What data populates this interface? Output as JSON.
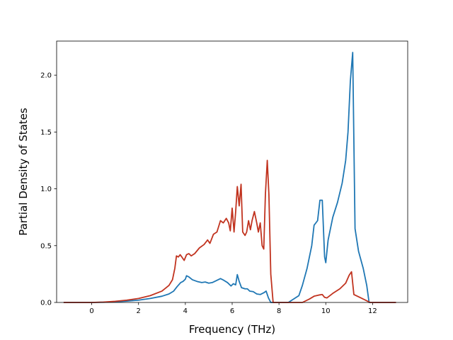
{
  "chart_data": {
    "type": "line",
    "title": "",
    "xlabel": "Frequency (THz)",
    "ylabel": "Partial Density of States",
    "xlim": [
      -1.5,
      13.5
    ],
    "ylim": [
      0.0,
      2.3
    ],
    "xticks": [
      0,
      2,
      4,
      6,
      8,
      10,
      12
    ],
    "xtick_labels": [
      "0",
      "2",
      "4",
      "6",
      "8",
      "10",
      "12"
    ],
    "yticks": [
      0.0,
      0.5,
      1.0,
      1.5,
      2.0
    ],
    "ytick_labels": [
      "0.0",
      "0.5",
      "1.0",
      "1.5",
      "2.0"
    ],
    "grid": false,
    "legend": "none",
    "series": [
      {
        "color": "#1f77b4",
        "points": [
          [
            -1.2,
            0.0
          ],
          [
            0.0,
            0.0
          ],
          [
            0.5,
            0.002
          ],
          [
            1.0,
            0.006
          ],
          [
            1.5,
            0.012
          ],
          [
            2.0,
            0.02
          ],
          [
            2.5,
            0.035
          ],
          [
            3.0,
            0.055
          ],
          [
            3.3,
            0.075
          ],
          [
            3.5,
            0.1
          ],
          [
            3.65,
            0.14
          ],
          [
            3.8,
            0.175
          ],
          [
            3.9,
            0.185
          ],
          [
            4.0,
            0.205
          ],
          [
            4.05,
            0.235
          ],
          [
            4.15,
            0.225
          ],
          [
            4.3,
            0.2
          ],
          [
            4.5,
            0.185
          ],
          [
            4.7,
            0.175
          ],
          [
            4.85,
            0.18
          ],
          [
            5.0,
            0.17
          ],
          [
            5.15,
            0.175
          ],
          [
            5.3,
            0.19
          ],
          [
            5.5,
            0.21
          ],
          [
            5.6,
            0.2
          ],
          [
            5.8,
            0.175
          ],
          [
            5.95,
            0.145
          ],
          [
            6.05,
            0.165
          ],
          [
            6.15,
            0.155
          ],
          [
            6.22,
            0.245
          ],
          [
            6.3,
            0.185
          ],
          [
            6.4,
            0.13
          ],
          [
            6.55,
            0.12
          ],
          [
            6.65,
            0.12
          ],
          [
            6.75,
            0.1
          ],
          [
            6.9,
            0.095
          ],
          [
            7.05,
            0.075
          ],
          [
            7.2,
            0.07
          ],
          [
            7.35,
            0.085
          ],
          [
            7.45,
            0.1
          ],
          [
            7.55,
            0.04
          ],
          [
            7.65,
            0.0
          ],
          [
            8.4,
            0.0
          ],
          [
            8.85,
            0.06
          ],
          [
            9.0,
            0.15
          ],
          [
            9.2,
            0.3
          ],
          [
            9.4,
            0.5
          ],
          [
            9.5,
            0.68
          ],
          [
            9.65,
            0.72
          ],
          [
            9.75,
            0.9
          ],
          [
            9.85,
            0.9
          ],
          [
            9.95,
            0.4
          ],
          [
            10.0,
            0.35
          ],
          [
            10.1,
            0.55
          ],
          [
            10.3,
            0.75
          ],
          [
            10.5,
            0.88
          ],
          [
            10.7,
            1.05
          ],
          [
            10.85,
            1.25
          ],
          [
            10.95,
            1.5
          ],
          [
            11.05,
            1.95
          ],
          [
            11.15,
            2.2
          ],
          [
            11.25,
            0.65
          ],
          [
            11.4,
            0.45
          ],
          [
            11.6,
            0.3
          ],
          [
            11.75,
            0.15
          ],
          [
            11.85,
            0.0
          ],
          [
            13.0,
            0.0
          ]
        ]
      },
      {
        "color": "#c1331f",
        "points": [
          [
            -1.2,
            0.0
          ],
          [
            0.0,
            0.0
          ],
          [
            0.5,
            0.003
          ],
          [
            1.0,
            0.01
          ],
          [
            1.5,
            0.02
          ],
          [
            2.0,
            0.035
          ],
          [
            2.5,
            0.06
          ],
          [
            3.0,
            0.1
          ],
          [
            3.3,
            0.15
          ],
          [
            3.45,
            0.2
          ],
          [
            3.55,
            0.3
          ],
          [
            3.62,
            0.41
          ],
          [
            3.7,
            0.4
          ],
          [
            3.78,
            0.42
          ],
          [
            3.85,
            0.4
          ],
          [
            3.95,
            0.37
          ],
          [
            4.05,
            0.42
          ],
          [
            4.15,
            0.43
          ],
          [
            4.25,
            0.41
          ],
          [
            4.4,
            0.43
          ],
          [
            4.6,
            0.48
          ],
          [
            4.8,
            0.51
          ],
          [
            4.95,
            0.55
          ],
          [
            5.05,
            0.52
          ],
          [
            5.2,
            0.6
          ],
          [
            5.35,
            0.62
          ],
          [
            5.5,
            0.72
          ],
          [
            5.62,
            0.7
          ],
          [
            5.75,
            0.74
          ],
          [
            5.85,
            0.7
          ],
          [
            5.92,
            0.63
          ],
          [
            6.0,
            0.83
          ],
          [
            6.08,
            0.62
          ],
          [
            6.15,
            0.8
          ],
          [
            6.22,
            1.02
          ],
          [
            6.3,
            0.85
          ],
          [
            6.38,
            1.04
          ],
          [
            6.45,
            0.62
          ],
          [
            6.55,
            0.59
          ],
          [
            6.62,
            0.62
          ],
          [
            6.7,
            0.72
          ],
          [
            6.78,
            0.64
          ],
          [
            6.85,
            0.72
          ],
          [
            6.95,
            0.8
          ],
          [
            7.05,
            0.7
          ],
          [
            7.12,
            0.62
          ],
          [
            7.2,
            0.7
          ],
          [
            7.28,
            0.5
          ],
          [
            7.35,
            0.47
          ],
          [
            7.42,
            0.95
          ],
          [
            7.5,
            1.25
          ],
          [
            7.57,
            0.95
          ],
          [
            7.65,
            0.25
          ],
          [
            7.75,
            0.0
          ],
          [
            9.0,
            0.0
          ],
          [
            9.3,
            0.03
          ],
          [
            9.5,
            0.055
          ],
          [
            9.7,
            0.065
          ],
          [
            9.85,
            0.07
          ],
          [
            9.95,
            0.045
          ],
          [
            10.05,
            0.04
          ],
          [
            10.3,
            0.08
          ],
          [
            10.6,
            0.12
          ],
          [
            10.85,
            0.17
          ],
          [
            11.0,
            0.24
          ],
          [
            11.1,
            0.27
          ],
          [
            11.2,
            0.07
          ],
          [
            11.5,
            0.04
          ],
          [
            11.8,
            0.01
          ],
          [
            11.9,
            0.0
          ],
          [
            13.0,
            0.0
          ]
        ]
      }
    ]
  }
}
